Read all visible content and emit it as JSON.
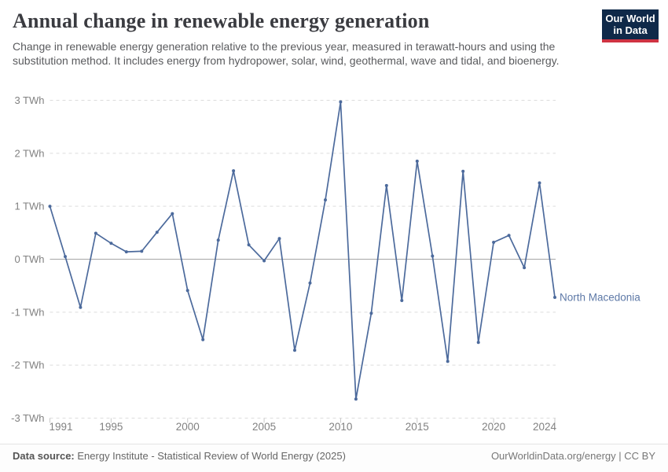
{
  "header": {
    "title": "Annual change in renewable energy generation",
    "subtitle": "Change in renewable energy generation relative to the previous year, measured in terawatt-hours and using the substitution method. It includes energy from hydropower, solar, wind, geothermal, wave and tidal, and bioenergy.",
    "logo": {
      "line1": "Our World",
      "line2": "in Data"
    }
  },
  "chart_data": {
    "type": "line",
    "title": "Annual change in renewable energy generation",
    "unit": "TWh",
    "x": [
      1991,
      1992,
      1993,
      1994,
      1995,
      1996,
      1997,
      1998,
      1999,
      2000,
      2001,
      2002,
      2003,
      2004,
      2005,
      2006,
      2007,
      2008,
      2009,
      2010,
      2011,
      2012,
      2013,
      2014,
      2015,
      2016,
      2017,
      2018,
      2019,
      2020,
      2021,
      2022,
      2023,
      2024
    ],
    "series": [
      {
        "name": "North Macedonia",
        "values": [
          1.0,
          0.05,
          -0.91,
          0.49,
          0.3,
          0.14,
          0.15,
          0.51,
          0.86,
          -0.59,
          -1.52,
          0.36,
          1.67,
          0.27,
          -0.03,
          0.39,
          -1.72,
          -0.45,
          1.12,
          2.97,
          -2.64,
          -1.02,
          1.39,
          -0.78,
          1.85,
          0.06,
          -1.93,
          1.66,
          -1.57,
          0.32,
          0.45,
          -0.16,
          1.44,
          -0.72
        ]
      }
    ],
    "entity_label": "North Macedonia",
    "ylim": [
      -3,
      3
    ],
    "yticks": [
      {
        "value": 3,
        "label": "3 TWh"
      },
      {
        "value": 2,
        "label": "2 TWh"
      },
      {
        "value": 1,
        "label": "1 TWh"
      },
      {
        "value": 0,
        "label": "0 TWh"
      },
      {
        "value": -1,
        "label": "-1 TWh"
      },
      {
        "value": -2,
        "label": "-2 TWh"
      },
      {
        "value": -3,
        "label": "-3 TWh"
      }
    ],
    "xticks": [
      1991,
      1995,
      2000,
      2005,
      2010,
      2015,
      2020,
      2024
    ],
    "grid": "horizontal-dashed",
    "legend_position": "end-of-line-label",
    "colors": {
      "series_line": "#4c6a9c",
      "series_label": "#5e79a7",
      "gridline": "#dcdcdc",
      "zero_line": "#a6a6a6",
      "tick_text": "#818181",
      "tick_mark": "#c9c9c9"
    }
  },
  "footer": {
    "datasource_label": "Data source:",
    "datasource_text": "Energy Institute - Statistical Review of World Energy (2025)",
    "credit": "OurWorldinData.org/energy | CC BY"
  }
}
